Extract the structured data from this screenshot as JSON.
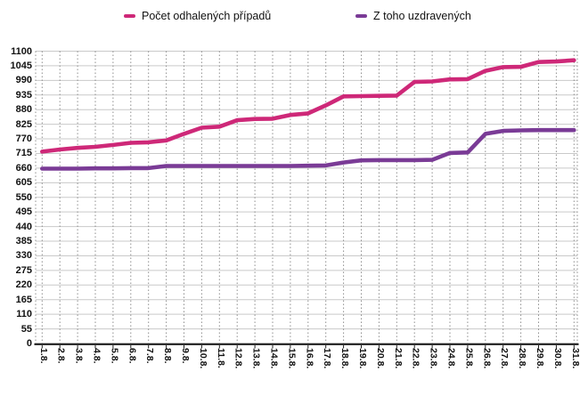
{
  "legend": {
    "items": [
      {
        "label": "Počet odhalených případů",
        "color": "#ce2878"
      },
      {
        "label": "Z toho uzdravených",
        "color": "#7a3b96"
      }
    ]
  },
  "colors": {
    "series_detected": "#ce2878",
    "series_recovered": "#7a3b96",
    "grid_horizontal": "#c9c9c9",
    "grid_vertical": "#8f8f8f",
    "axis": "#1d1d1d",
    "text": "#111111",
    "background": "#ffffff"
  },
  "chart_data": {
    "type": "line",
    "title": "",
    "xlabel": "",
    "ylabel": "",
    "legend_position": "top",
    "grid": "horizontal solid, vertical dotted",
    "ylim": [
      0,
      1100
    ],
    "ytick_step": 55,
    "yticks": [
      0,
      55,
      110,
      165,
      220,
      275,
      330,
      385,
      440,
      495,
      550,
      605,
      660,
      715,
      770,
      825,
      880,
      935,
      990,
      1045,
      1100
    ],
    "categories": [
      "1.8.",
      "2.8.",
      "3.8.",
      "4.8.",
      "5.8.",
      "6.8.",
      "7.8.",
      "8.8.",
      "9.8.",
      "10.8.",
      "11.8.",
      "12.8.",
      "13.8.",
      "14.8.",
      "15.8.",
      "16.8.",
      "17.8.",
      "18.8.",
      "19.8.",
      "20.8.",
      "21.8.",
      "22.8.",
      "23.8.",
      "24.8.",
      "25.8.",
      "26.8.",
      "27.8.",
      "28.8.",
      "29.8.",
      "30.8.",
      "31.8."
    ],
    "series": [
      {
        "name": "Počet odhalených případů",
        "color": "#ce2878",
        "values": [
          722,
          730,
          736,
          740,
          747,
          755,
          757,
          764,
          789,
          812,
          816,
          840,
          845,
          846,
          860,
          866,
          896,
          930,
          931,
          932,
          933,
          984,
          986,
          994,
          995,
          1026,
          1040,
          1041,
          1059,
          1061,
          1066
        ]
      },
      {
        "name": "Z toho uzdravených",
        "color": "#7a3b96",
        "values": [
          658,
          658,
          658,
          659,
          659,
          660,
          660,
          668,
          668,
          668,
          668,
          668,
          668,
          668,
          668,
          669,
          670,
          681,
          689,
          690,
          690,
          690,
          691,
          717,
          719,
          789,
          800,
          802,
          803,
          803,
          803
        ]
      }
    ]
  }
}
